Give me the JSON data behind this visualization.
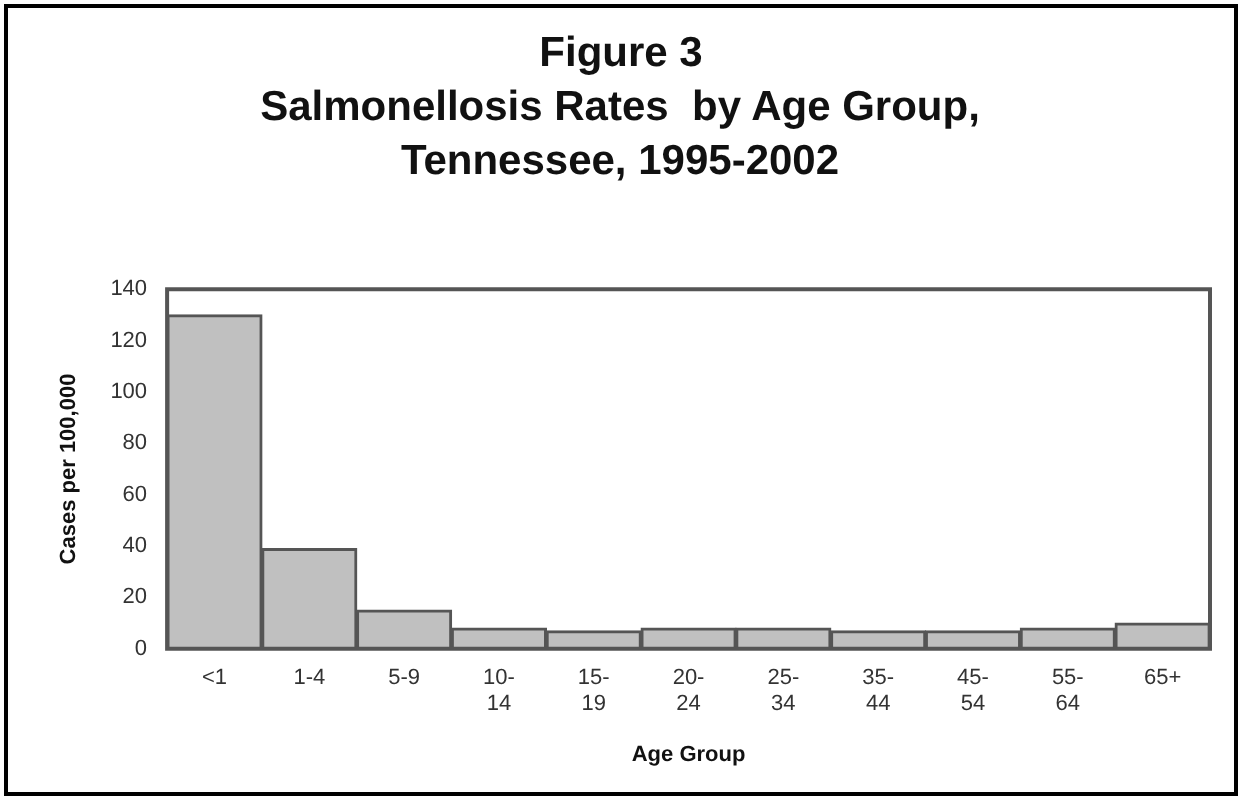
{
  "chart_data": {
    "type": "bar",
    "title": "Figure 3",
    "subtitle": "Salmonellosis Rates  by Age Group, Tennessee, 1995-2002",
    "xlabel": "Age Group",
    "ylabel": "Cases per 100,000",
    "categories": [
      "<1",
      "1-4",
      "5-9",
      "10-14",
      "15-19",
      "20-24",
      "25-34",
      "35-44",
      "45-54",
      "55-64",
      "65+"
    ],
    "values": [
      130,
      39,
      15,
      8,
      7,
      8,
      8,
      7,
      7,
      8,
      10
    ],
    "color": "#c0c0c0",
    "ylim": [
      0,
      140
    ],
    "yticks": [
      0,
      20,
      40,
      60,
      80,
      100,
      120,
      140
    ],
    "grid": false,
    "legend": false
  }
}
